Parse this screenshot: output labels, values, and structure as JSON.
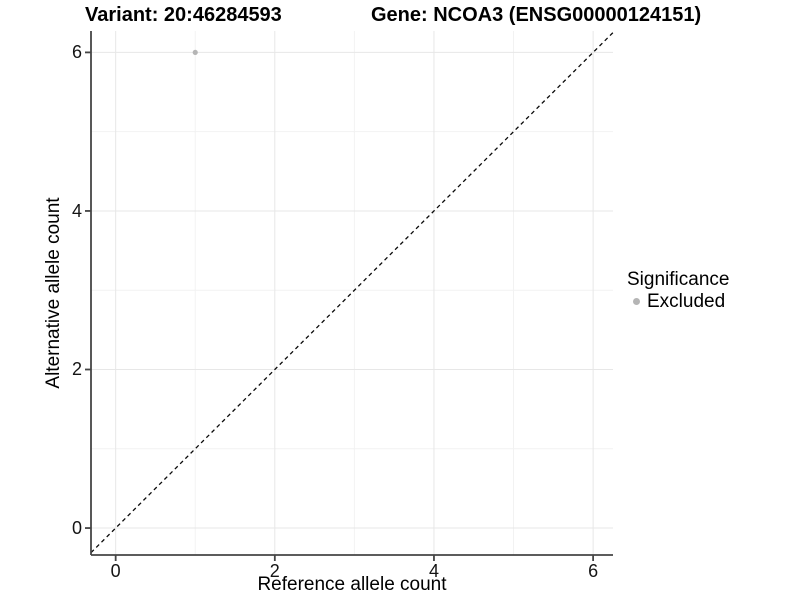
{
  "titles": {
    "variant": "Variant: 20:46284593",
    "gene": "Gene: NCOA3 (ENSG00000124151)"
  },
  "legend": {
    "title": "Significance",
    "items": [
      {
        "label": "Excluded",
        "color": "#b5b5b5"
      }
    ]
  },
  "chart_data": {
    "type": "scatter",
    "title_left": "Variant: 20:46284593",
    "title_right": "Gene: NCOA3 (ENSG00000124151)",
    "xlabel": "Reference allele count",
    "ylabel": "Alternative allele count",
    "x_ticks": [
      0,
      2,
      4,
      6
    ],
    "y_ticks": [
      0,
      2,
      4,
      6
    ],
    "minor_ticks": [
      1,
      3,
      5
    ],
    "xlim": [
      -0.31,
      6.25
    ],
    "ylim": [
      -0.34,
      6.27
    ],
    "grid": true,
    "legend_position": "right",
    "series": [
      {
        "name": "Excluded",
        "color": "#b5b5b5",
        "points": [
          {
            "x": 1,
            "y": 6
          }
        ]
      }
    ],
    "reference_line": {
      "type": "identity",
      "style": "dashed",
      "color": "#0a0a0a"
    },
    "colors": {
      "grid_major": "#e7e7e7",
      "grid_minor": "#f2f2f2",
      "axis": "#454545",
      "text": "#000000",
      "background": "#ffffff"
    }
  }
}
